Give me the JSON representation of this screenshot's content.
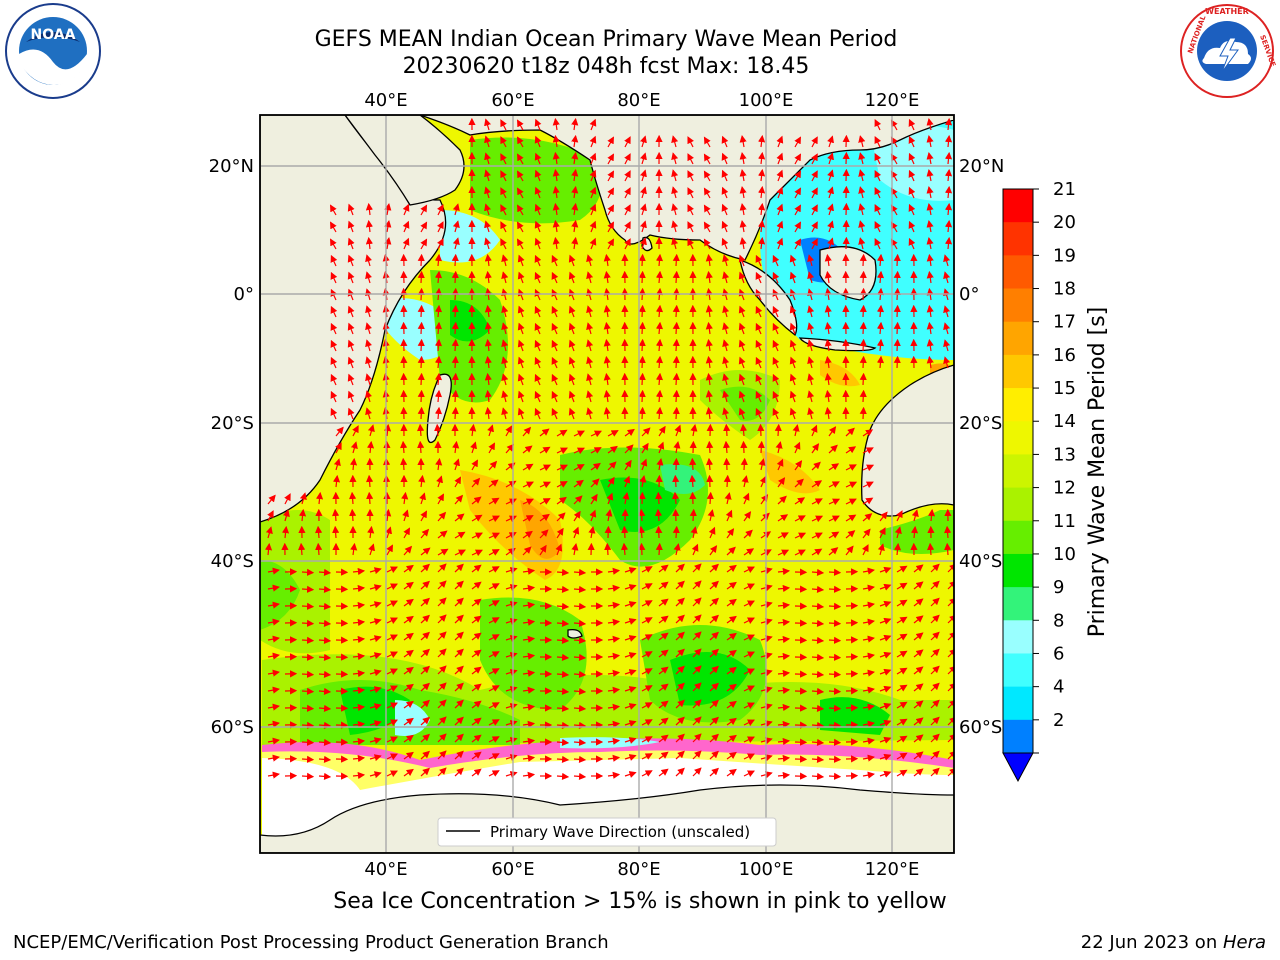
{
  "header": {
    "title_line1": "GEFS MEAN Indian Ocean Primary Wave Mean Period",
    "title_line2": "20230620 t18z 048h fcst   Max: 18.45"
  },
  "logos": {
    "left": {
      "name": "NOAA",
      "ring_text": "NATIONAL OCEANIC AND ATMOSPHERIC ADMINISTRATION · U.S. DEPARTMENT OF COMMERCE"
    },
    "right": {
      "name": "NATIONAL WEATHER SERVICE"
    }
  },
  "map": {
    "lon_labels": [
      "40°E",
      "60°E",
      "80°E",
      "100°E",
      "120°E"
    ],
    "lat_labels": [
      "20°N",
      "0°",
      "20°S",
      "40°S",
      "60°S"
    ],
    "legend_label": "Primary Wave Direction (unscaled)",
    "colors": {
      "land": "#efefdf",
      "sea_ice": "#ffffff",
      "arrow": "#ff0000"
    }
  },
  "colorbar": {
    "label": "Primary Wave Mean Period [s]",
    "ticks": [
      "21",
      "20",
      "19",
      "18",
      "17",
      "16",
      "15",
      "14",
      "13",
      "12",
      "11",
      "10",
      "9",
      "8",
      "6",
      "4",
      "2"
    ],
    "colors": [
      "#ff0000",
      "#ff3300",
      "#ff5a00",
      "#ff7f00",
      "#ffa500",
      "#ffc800",
      "#ffee00",
      "#eef700",
      "#ccf500",
      "#aaf200",
      "#66ee00",
      "#00e600",
      "#33f37a",
      "#99ffff",
      "#40ffff",
      "#00e8ff",
      "#0080ff"
    ],
    "extend_color": "#0000ff"
  },
  "caption": "Sea Ice Concentration > 15% is shown in pink to yellow",
  "footer": {
    "left": "NCEP/EMC/Verification Post Processing Product Generation Branch",
    "right_date": "22 Jun 2023 on ",
    "right_host": "Hera"
  }
}
